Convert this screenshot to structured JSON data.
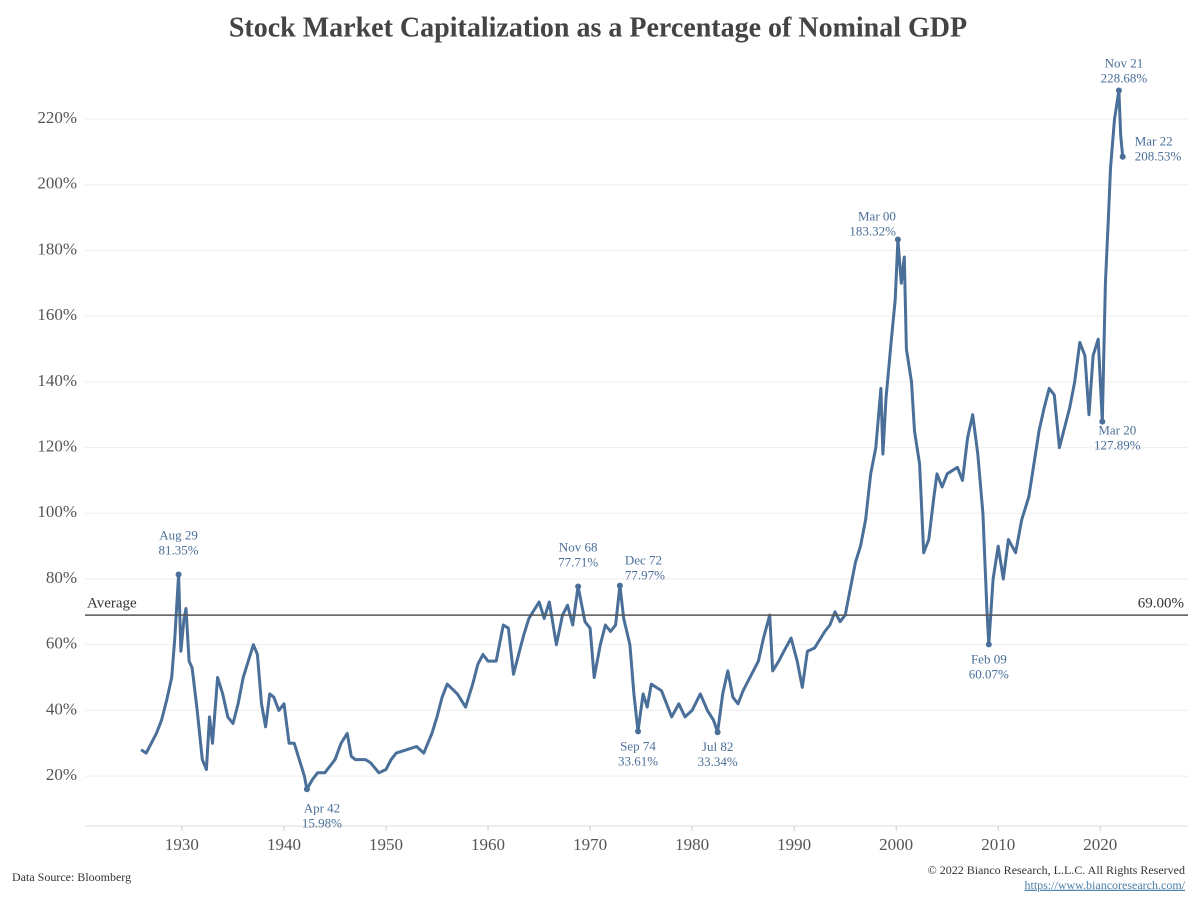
{
  "chart_data": {
    "type": "line",
    "title": "Stock Market Capitalization as a Percentage of Nominal GDP",
    "color": "#4a6f99",
    "x": [
      1926,
      1926.5,
      1927,
      1927.5,
      1928,
      1928.5,
      1929,
      1929.3,
      1929.67,
      1929.9,
      1930.2,
      1930.4,
      1930.7,
      1931,
      1931.5,
      1932,
      1932.4,
      1932.7,
      1933,
      1933.5,
      1934,
      1934.5,
      1935,
      1935.5,
      1936,
      1936.5,
      1937,
      1937.4,
      1937.8,
      1938.2,
      1938.6,
      1939,
      1939.5,
      1940,
      1940.5,
      1941,
      1941.5,
      1942,
      1942.25,
      1942.8,
      1943.3,
      1944,
      1945,
      1945.6,
      1946.2,
      1946.6,
      1947,
      1948,
      1948.5,
      1949.3,
      1950,
      1950.5,
      1951,
      1952,
      1953,
      1953.7,
      1954.5,
      1955,
      1955.5,
      1956,
      1957,
      1957.8,
      1958.5,
      1959,
      1959.5,
      1960,
      1960.8,
      1961.5,
      1962,
      1962.5,
      1963,
      1963.5,
      1964,
      1965,
      1965.5,
      1966,
      1966.7,
      1967.3,
      1967.8,
      1968.3,
      1968.83,
      1969.5,
      1970,
      1970.4,
      1971,
      1971.5,
      1972,
      1972.5,
      1972.92,
      1973.3,
      1973.9,
      1974.3,
      1974.7,
      1975.2,
      1975.6,
      1976,
      1977,
      1977.5,
      1978,
      1978.7,
      1979.3,
      1980,
      1980.8,
      1981.5,
      1982.1,
      1982.5,
      1983,
      1983.5,
      1984,
      1984.5,
      1985,
      1986,
      1986.5,
      1987,
      1987.6,
      1987.9,
      1988.5,
      1989,
      1989.7,
      1990.3,
      1990.8,
      1991.3,
      1992,
      1993,
      1993.5,
      1994,
      1994.5,
      1995,
      1995.5,
      1996,
      1996.5,
      1997,
      1997.5,
      1998,
      1998.5,
      1998.7,
      1999,
      1999.5,
      1999.9,
      2000.17,
      2000.5,
      2000.8,
      2001,
      2001.5,
      2001.8,
      2002.3,
      2002.7,
      2003.2,
      2003.7,
      2004,
      2004.5,
      2005,
      2006,
      2006.5,
      2007,
      2007.5,
      2008,
      2008.5,
      2008.9,
      2009.08,
      2009.5,
      2010,
      2010.5,
      2011,
      2011.7,
      2012.3,
      2013,
      2013.5,
      2014,
      2014.5,
      2015,
      2015.5,
      2016,
      2016.5,
      2017,
      2017.5,
      2018,
      2018.5,
      2018.9,
      2019.3,
      2019.8,
      2020.2,
      2020.5,
      2020.8,
      2021,
      2021.4,
      2021.83,
      2022,
      2022.2
    ],
    "values": [
      28,
      27,
      30,
      33,
      37,
      43,
      50,
      62,
      81.35,
      58,
      68,
      71,
      55,
      53,
      40,
      25,
      22,
      38,
      30,
      50,
      45,
      38,
      36,
      42,
      50,
      55,
      60,
      57,
      42,
      35,
      45,
      44,
      40,
      42,
      30,
      30,
      25,
      20,
      15.98,
      19,
      21,
      21,
      25,
      30,
      33,
      26,
      25,
      25,
      24,
      21,
      22,
      25,
      27,
      28,
      29,
      27,
      33,
      38,
      44,
      48,
      45,
      41,
      48,
      54,
      57,
      55,
      55,
      66,
      65,
      51,
      57,
      63,
      68,
      73,
      68,
      73,
      60,
      69,
      72,
      66,
      77.71,
      67,
      65,
      50,
      60,
      66,
      64,
      66,
      77.97,
      68,
      60,
      45,
      33.61,
      45,
      41,
      48,
      46,
      42,
      38,
      42,
      38,
      40,
      45,
      40,
      37,
      33.34,
      45,
      52,
      44,
      42,
      46,
      52,
      55,
      62,
      69,
      52,
      55,
      58,
      62,
      55,
      47,
      58,
      59,
      64,
      66,
      70,
      67,
      69,
      77,
      85,
      90,
      98,
      112,
      120,
      138,
      118,
      135,
      152,
      165,
      183.32,
      170,
      178,
      150,
      140,
      125,
      115,
      88,
      92,
      105,
      112,
      108,
      112,
      114,
      110,
      123,
      130,
      118,
      100,
      70,
      60.07,
      80,
      90,
      80,
      92,
      88,
      98,
      105,
      115,
      125,
      132,
      138,
      136,
      120,
      126,
      132,
      140,
      152,
      148,
      130,
      148,
      153,
      127.89,
      170,
      190,
      205,
      220,
      228.68,
      215,
      208.53
    ],
    "xlim": [
      1920.5,
      2028.6
    ],
    "ylim": [
      4.8,
      239.5
    ],
    "xticks": [
      1930,
      1940,
      1950,
      1960,
      1970,
      1980,
      1990,
      2000,
      2010,
      2020
    ],
    "yticks": [
      {
        "value": 20,
        "label": "20%"
      },
      {
        "value": 40,
        "label": "40%"
      },
      {
        "value": 60,
        "label": "60%"
      },
      {
        "value": 80,
        "label": "80%"
      },
      {
        "value": 100,
        "label": "100%"
      },
      {
        "value": 120,
        "label": "120%"
      },
      {
        "value": 140,
        "label": "140%"
      },
      {
        "value": 160,
        "label": "160%"
      },
      {
        "value": 180,
        "label": "180%"
      },
      {
        "value": 200,
        "label": "200%"
      },
      {
        "value": 220,
        "label": "220%"
      }
    ],
    "grid": true,
    "average": {
      "label": "Average",
      "value": 69,
      "value_label": "69.00%"
    },
    "annotations": [
      {
        "x": 1929.67,
        "value": 81.35,
        "label": "Aug 29",
        "value_label": "81.35%"
      },
      {
        "x": 1942.25,
        "value": 15.98,
        "label": "Apr 42",
        "value_label": "15.98%"
      },
      {
        "x": 1968.83,
        "value": 77.71,
        "label": "Nov 68",
        "value_label": "77.71%"
      },
      {
        "x": 1972.92,
        "value": 77.97,
        "label": "Dec 72",
        "value_label": "77.97%"
      },
      {
        "x": 1974.7,
        "value": 33.61,
        "label": "Sep 74",
        "value_label": "33.61%"
      },
      {
        "x": 1982.5,
        "value": 33.34,
        "label": "Jul 82",
        "value_label": "33.34%"
      },
      {
        "x": 2000.17,
        "value": 183.32,
        "label": "Mar 00",
        "value_label": "183.32%"
      },
      {
        "x": 2009.08,
        "value": 60.07,
        "label": "Feb 09",
        "value_label": "60.07%"
      },
      {
        "x": 2020.2,
        "value": 127.89,
        "label": "Mar 20",
        "value_label": "127.89%"
      },
      {
        "x": 2021.83,
        "value": 228.68,
        "label": "Nov 21",
        "value_label": "228.68%"
      },
      {
        "x": 2022.2,
        "value": 208.53,
        "label": "Mar 22",
        "value_label": "208.53%"
      }
    ]
  },
  "footer": {
    "source": "Data Source: Bloomberg",
    "copyright": "© 2022 Bianco Research, L.L.C. All Rights Reserved",
    "url": "https://www.biancoresearch.com/"
  }
}
